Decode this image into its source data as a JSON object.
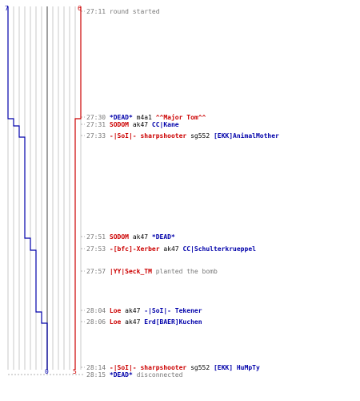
{
  "colors": {
    "ct": "#0000aa",
    "t": "#cc0000",
    "neutral": "#000000",
    "time": "#777777",
    "grid": "#bbbbbb",
    "axis": "#888888",
    "dash": "#999999"
  },
  "scoreboard": {
    "ct_start": "7",
    "t_start": "6",
    "ct_end": "0",
    "t_end": "5"
  },
  "events": [
    {
      "time": "27:11",
      "parts": [
        {
          "t": "round started",
          "c": "time"
        }
      ]
    },
    {
      "time": "27:30",
      "parts": [
        {
          "t": "*DEAD* ",
          "c": "ct"
        },
        {
          "t": "m4a1 ",
          "c": "neutral"
        },
        {
          "t": "^^Major Tom^^",
          "c": "t"
        }
      ]
    },
    {
      "time": "27:31",
      "parts": [
        {
          "t": "SODOM ",
          "c": "t"
        },
        {
          "t": "ak47 ",
          "c": "neutral"
        },
        {
          "t": "CC|Kane",
          "c": "ct"
        }
      ]
    },
    {
      "time": "27:33",
      "parts": [
        {
          "t": "-|SoI|- sharpshooter ",
          "c": "t"
        },
        {
          "t": "sg552 ",
          "c": "neutral"
        },
        {
          "t": "[EKK]AnimalMother",
          "c": "ct"
        }
      ]
    },
    {
      "time": "27:51",
      "parts": [
        {
          "t": "SODOM ",
          "c": "t"
        },
        {
          "t": "ak47 ",
          "c": "neutral"
        },
        {
          "t": "*DEAD*",
          "c": "ct"
        }
      ]
    },
    {
      "time": "27:53",
      "parts": [
        {
          "t": "-[bfc]-Xerber ",
          "c": "t"
        },
        {
          "t": "ak47 ",
          "c": "neutral"
        },
        {
          "t": "CC|Schulterkrueppel",
          "c": "ct"
        }
      ]
    },
    {
      "time": "27:57",
      "parts": [
        {
          "t": "|YY|Seck_TM ",
          "c": "t"
        },
        {
          "t": "planted the bomb",
          "c": "time"
        }
      ]
    },
    {
      "time": "28:04",
      "parts": [
        {
          "t": "Loe ",
          "c": "t"
        },
        {
          "t": "ak47 ",
          "c": "neutral"
        },
        {
          "t": "-|SoI|- Tekener",
          "c": "ct"
        }
      ]
    },
    {
      "time": "28:06",
      "parts": [
        {
          "t": "Loe ",
          "c": "t"
        },
        {
          "t": "ak47 ",
          "c": "neutral"
        },
        {
          "t": "Erd[BAER]Kuchen",
          "c": "ct"
        }
      ]
    },
    {
      "time": "28:14",
      "parts": [
        {
          "t": "-|SoI|- sharpshooter ",
          "c": "t"
        },
        {
          "t": "sg552 ",
          "c": "neutral"
        },
        {
          "t": "[EKK] HuMpTy",
          "c": "ct"
        }
      ]
    },
    {
      "time": "28:15",
      "parts": [
        {
          "t": "*DEAD* ",
          "c": "ct"
        },
        {
          "t": "disconnected",
          "c": "time"
        }
      ]
    }
  ]
}
